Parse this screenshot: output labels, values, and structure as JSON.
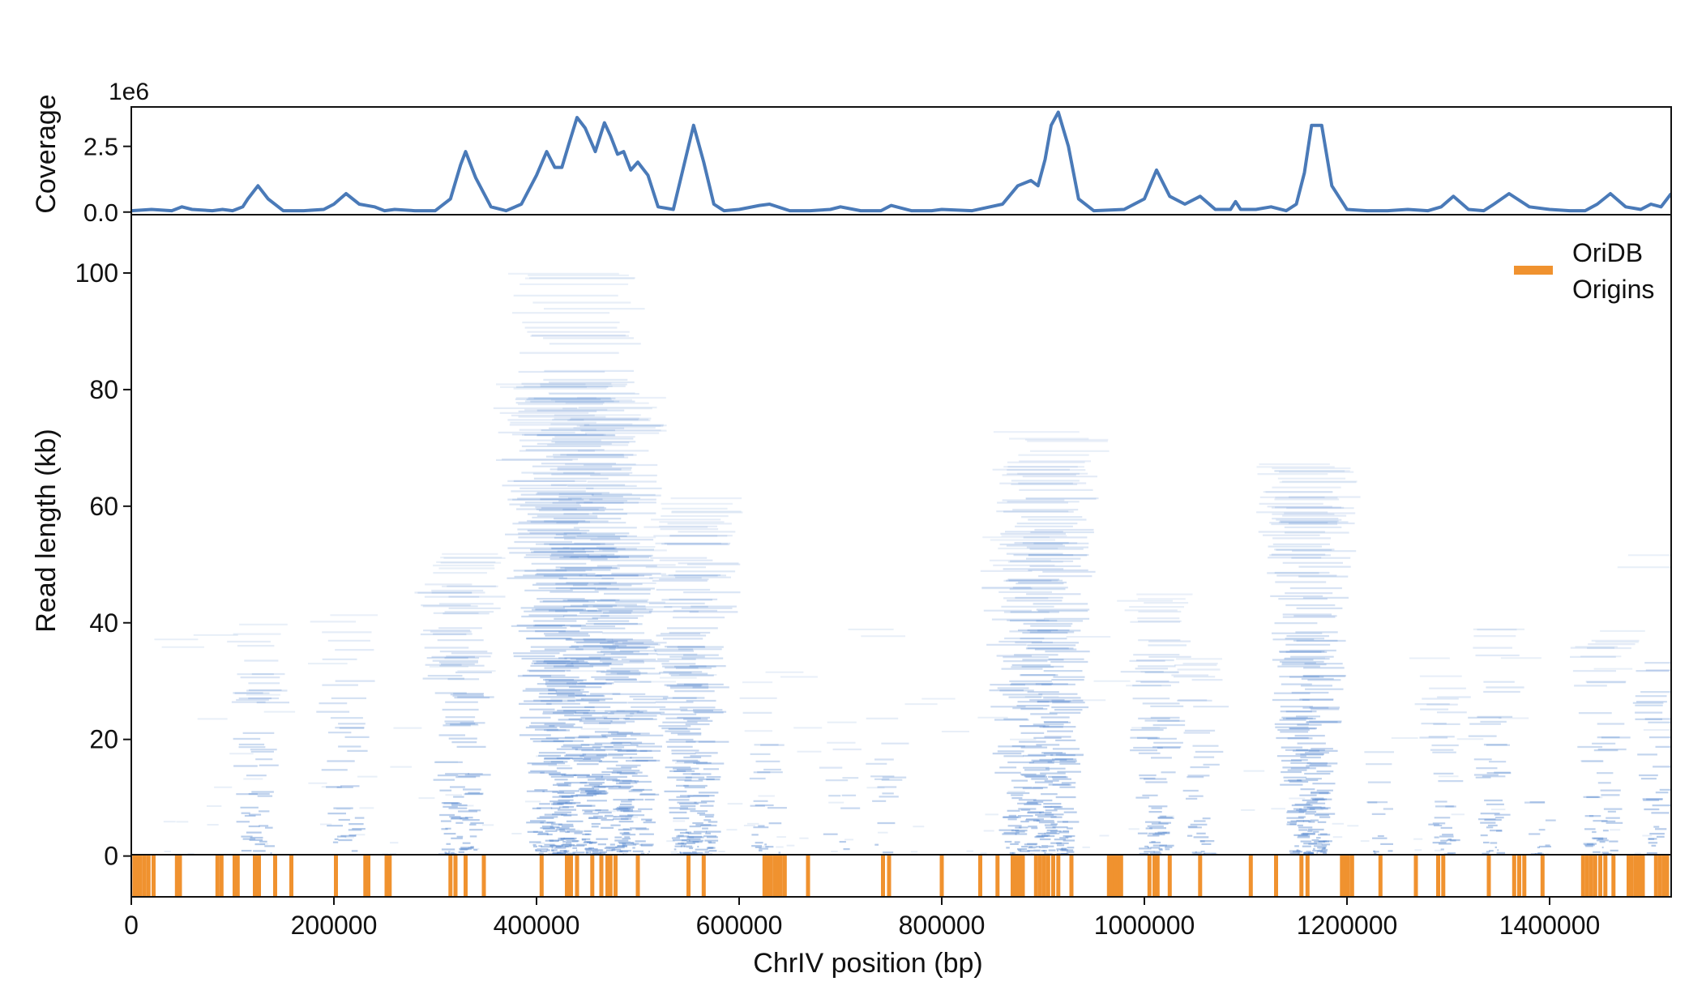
{
  "chart_data": [
    {
      "type": "line",
      "panel": "coverage",
      "ylabel": "Coverage",
      "offset_text": "1e6",
      "xlim": [
        0,
        1520000
      ],
      "ylim": [
        -0.1,
        4.0
      ],
      "yticks": [
        0.0,
        2.5
      ],
      "ytick_labels": [
        "0.0",
        "2.5"
      ],
      "series": [
        {
          "color": "#4a7ab8",
          "x": [
            0,
            20000,
            40000,
            50000,
            60000,
            80000,
            90000,
            100000,
            110000,
            115000,
            125000,
            135000,
            150000,
            170000,
            190000,
            200000,
            212000,
            225000,
            240000,
            250000,
            260000,
            280000,
            300000,
            315000,
            325000,
            330000,
            340000,
            355000,
            370000,
            385000,
            400000,
            410000,
            418000,
            425000,
            432000,
            440000,
            448000,
            458000,
            467000,
            473000,
            480000,
            486000,
            493000,
            500000,
            510000,
            520000,
            535000,
            550000,
            555000,
            565000,
            575000,
            585000,
            600000,
            620000,
            630000,
            650000,
            670000,
            690000,
            700000,
            720000,
            740000,
            750000,
            770000,
            790000,
            800000,
            830000,
            860000,
            875000,
            888000,
            895000,
            902000,
            908000,
            915000,
            925000,
            935000,
            950000,
            980000,
            1000000,
            1012000,
            1025000,
            1040000,
            1055000,
            1070000,
            1085000,
            1090000,
            1095000,
            1110000,
            1125000,
            1140000,
            1150000,
            1158000,
            1165000,
            1175000,
            1185000,
            1200000,
            1220000,
            1240000,
            1260000,
            1280000,
            1293000,
            1305000,
            1320000,
            1335000,
            1345000,
            1360000,
            1380000,
            1400000,
            1420000,
            1435000,
            1447000,
            1460000,
            1475000,
            1490000,
            1500000,
            1510000,
            1520000
          ],
          "values": [
            0.05,
            0.1,
            0.05,
            0.2,
            0.1,
            0.05,
            0.1,
            0.05,
            0.2,
            0.5,
            1.0,
            0.5,
            0.05,
            0.05,
            0.1,
            0.3,
            0.7,
            0.3,
            0.2,
            0.05,
            0.1,
            0.05,
            0.05,
            0.5,
            1.8,
            2.3,
            1.3,
            0.2,
            0.05,
            0.3,
            1.4,
            2.3,
            1.7,
            1.7,
            2.6,
            3.6,
            3.2,
            2.3,
            3.4,
            2.9,
            2.2,
            2.3,
            1.6,
            1.9,
            1.4,
            0.2,
            0.1,
            2.5,
            3.3,
            1.9,
            0.3,
            0.05,
            0.1,
            0.25,
            0.3,
            0.05,
            0.05,
            0.1,
            0.2,
            0.05,
            0.05,
            0.25,
            0.05,
            0.05,
            0.1,
            0.05,
            0.3,
            1.0,
            1.2,
            1.0,
            2.0,
            3.3,
            3.8,
            2.5,
            0.5,
            0.05,
            0.1,
            0.5,
            1.6,
            0.6,
            0.3,
            0.6,
            0.1,
            0.1,
            0.4,
            0.1,
            0.1,
            0.2,
            0.05,
            0.3,
            1.5,
            3.3,
            3.3,
            1.0,
            0.1,
            0.05,
            0.05,
            0.1,
            0.05,
            0.2,
            0.6,
            0.1,
            0.05,
            0.3,
            0.7,
            0.2,
            0.1,
            0.05,
            0.05,
            0.3,
            0.7,
            0.2,
            0.1,
            0.3,
            0.2,
            0.7
          ]
        }
      ]
    },
    {
      "type": "scatter",
      "panel": "reads",
      "ylabel": "Read length (kb)",
      "xlabel": "ChrIV position (bp)",
      "xlim": [
        0,
        1520000
      ],
      "ylim": [
        -7,
        110
      ],
      "xticks": [
        0,
        200000,
        400000,
        600000,
        800000,
        1000000,
        1200000,
        1400000
      ],
      "xtick_labels": [
        "0",
        "200000",
        "400000",
        "600000",
        "800000",
        "1000000",
        "1200000",
        "1400000"
      ],
      "yticks": [
        0,
        20,
        40,
        60,
        80,
        100
      ],
      "ytick_labels": [
        "0",
        "20",
        "40",
        "60",
        "80",
        "100"
      ],
      "read_color": "#5b8bd0",
      "legend": {
        "label_line1": "OriDB",
        "label_line2": "Origins",
        "color": "#f0922f",
        "placement": "top-right"
      },
      "read_clusters": [
        {
          "center": 125000,
          "width": 60000,
          "max_len": 40,
          "n": 55
        },
        {
          "center": 212000,
          "width": 55000,
          "max_len": 42,
          "n": 40
        },
        {
          "center": 325000,
          "width": 70000,
          "max_len": 52,
          "n": 130
        },
        {
          "center": 415000,
          "width": 70000,
          "max_len": 85,
          "n": 220
        },
        {
          "center": 440000,
          "width": 80000,
          "max_len": 100,
          "n": 260
        },
        {
          "center": 470000,
          "width": 80000,
          "max_len": 80,
          "n": 220
        },
        {
          "center": 498000,
          "width": 60000,
          "max_len": 55,
          "n": 120
        },
        {
          "center": 555000,
          "width": 80000,
          "max_len": 62,
          "n": 220
        },
        {
          "center": 628000,
          "width": 50000,
          "max_len": 30,
          "n": 30
        },
        {
          "center": 700000,
          "width": 40000,
          "max_len": 20,
          "n": 15
        },
        {
          "center": 745000,
          "width": 40000,
          "max_len": 25,
          "n": 15
        },
        {
          "center": 878000,
          "width": 60000,
          "max_len": 55,
          "n": 100
        },
        {
          "center": 908000,
          "width": 80000,
          "max_len": 73,
          "n": 260
        },
        {
          "center": 1012000,
          "width": 60000,
          "max_len": 45,
          "n": 100
        },
        {
          "center": 1055000,
          "width": 45000,
          "max_len": 35,
          "n": 40
        },
        {
          "center": 1162000,
          "width": 70000,
          "max_len": 68,
          "n": 260
        },
        {
          "center": 1235000,
          "width": 40000,
          "max_len": 25,
          "n": 15
        },
        {
          "center": 1295000,
          "width": 45000,
          "max_len": 32,
          "n": 40
        },
        {
          "center": 1345000,
          "width": 45000,
          "max_len": 40,
          "n": 45
        },
        {
          "center": 1393000,
          "width": 40000,
          "max_len": 22,
          "n": 15
        },
        {
          "center": 1452000,
          "width": 55000,
          "max_len": 40,
          "n": 55
        },
        {
          "center": 1505000,
          "width": 40000,
          "max_len": 52,
          "n": 40
        }
      ],
      "oridb_origins": [
        3000,
        6000,
        9000,
        13000,
        17000,
        22000,
        45000,
        48000,
        85000,
        89000,
        102000,
        105000,
        122000,
        126000,
        142000,
        158000,
        202000,
        231000,
        234000,
        252000,
        255000,
        315000,
        320000,
        330000,
        348000,
        405000,
        430000,
        434000,
        440000,
        455000,
        464000,
        470000,
        473000,
        478000,
        500000,
        550000,
        565000,
        625000,
        628000,
        631000,
        635000,
        638000,
        641000,
        645000,
        668000,
        742000,
        748000,
        800000,
        838000,
        855000,
        870000,
        873000,
        876000,
        880000,
        893000,
        897000,
        901000,
        905000,
        910000,
        915000,
        928000,
        965000,
        968000,
        971000,
        974000,
        977000,
        1005000,
        1010000,
        1013000,
        1025000,
        1055000,
        1105000,
        1130000,
        1155000,
        1161000,
        1195000,
        1198000,
        1201000,
        1205000,
        1233000,
        1268000,
        1290000,
        1295000,
        1340000,
        1365000,
        1370000,
        1375000,
        1393000,
        1433000,
        1437000,
        1441000,
        1445000,
        1450000,
        1455000,
        1463000,
        1478000,
        1481000,
        1485000,
        1488000,
        1492000,
        1505000,
        1509000,
        1513000,
        1516000
      ]
    }
  ]
}
